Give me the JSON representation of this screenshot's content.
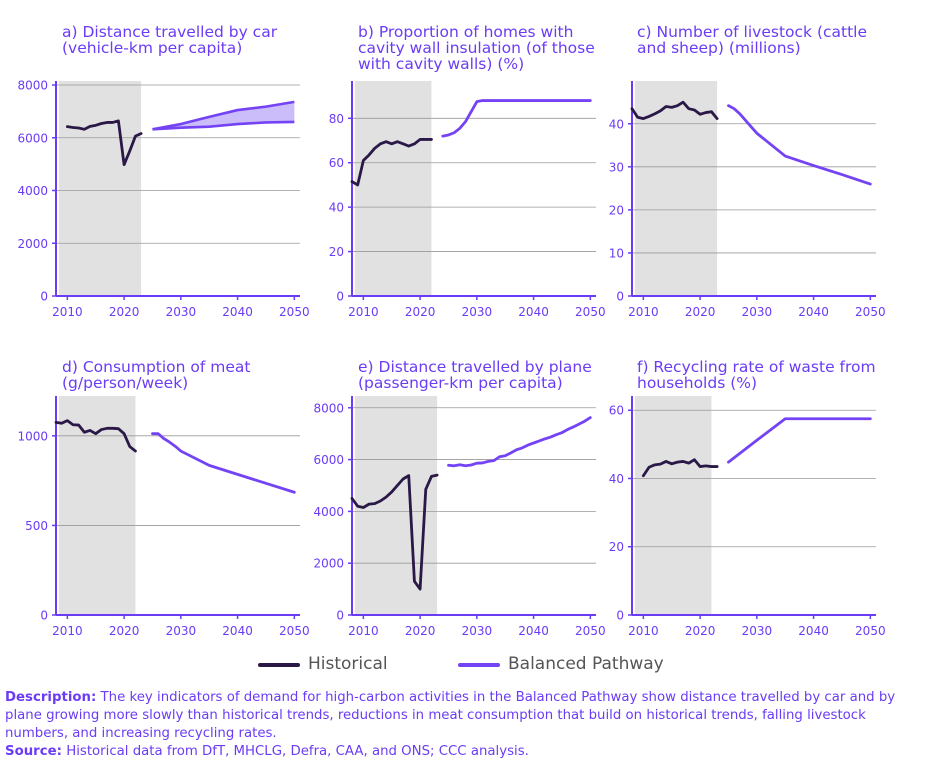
{
  "colors": {
    "historical": "#2a1846",
    "balanced": "#7443f5",
    "accent": "#6b3cf6",
    "shade": "#e1e1e1",
    "grid": "#9a9a9a"
  },
  "legend": {
    "historical": "Historical",
    "balanced": "Balanced Pathway"
  },
  "footer": {
    "description_label": "Description:",
    "description_text": " The key indicators of demand for high-carbon activities in the Balanced Pathway show distance travelled by car and by plane growing more slowly than historical trends, reductions in meat consumption that build on historical trends, falling livestock numbers, and increasing recycling rates.",
    "source_label": "Source:",
    "source_text": " Historical data from DfT, MHCLG, Defra, CAA, and ONS; CCC analysis."
  },
  "chart_data": [
    {
      "type": "line",
      "title": "a) Distance travelled by car (vehicle-km per capita)",
      "xlabel": "",
      "ylabel": "",
      "xlim": [
        2008,
        2051
      ],
      "ylim": [
        0,
        8000
      ],
      "yticks": [
        0,
        2000,
        4000,
        6000,
        8000
      ],
      "yticklabels": [
        "0",
        "2000",
        "4000",
        "6000",
        "8000"
      ],
      "xticks": [
        2010,
        2020,
        2030,
        2040,
        2050
      ],
      "historical_shading": [
        2008,
        2023
      ],
      "grid": true,
      "series": [
        {
          "role": "historical",
          "x": [
            2010,
            2011,
            2012,
            2013,
            2014,
            2015,
            2016,
            2017,
            2018,
            2019,
            2020,
            2021,
            2022,
            2023
          ],
          "y": [
            6420,
            6390,
            6370,
            6320,
            6430,
            6470,
            6540,
            6580,
            6580,
            6640,
            4980,
            5500,
            6060,
            6160
          ]
        },
        {
          "role": "balanced",
          "range": true,
          "x": [
            2025,
            2030,
            2035,
            2040,
            2045,
            2050
          ],
          "y_low": [
            6320,
            6380,
            6420,
            6520,
            6580,
            6600
          ],
          "y_high": [
            6320,
            6520,
            6790,
            7050,
            7180,
            7360
          ]
        }
      ]
    },
    {
      "type": "line",
      "title": "b) Proportion of homes with cavity wall insulation (of those with cavity walls) (%)",
      "xlabel": "",
      "ylabel": "",
      "xlim": [
        2008,
        2051
      ],
      "ylim": [
        0,
        95
      ],
      "yticks": [
        0,
        20,
        40,
        60,
        80
      ],
      "yticklabels": [
        "0",
        "20",
        "40",
        "60",
        "80"
      ],
      "xticks": [
        2010,
        2020,
        2030,
        2040,
        2050
      ],
      "historical_shading": [
        2008,
        2022
      ],
      "grid": true,
      "series": [
        {
          "role": "historical",
          "x": [
            2008,
            2009,
            2010,
            2011,
            2012,
            2013,
            2014,
            2015,
            2016,
            2017,
            2018,
            2019,
            2020,
            2021,
            2022
          ],
          "y": [
            51.5,
            50,
            61,
            63.5,
            66.5,
            68.5,
            69.5,
            68.5,
            69.5,
            68.5,
            67.5,
            68.5,
            70.5,
            70.5,
            70.5
          ]
        },
        {
          "role": "balanced",
          "x": [
            2024,
            2025,
            2026,
            2027,
            2028,
            2029,
            2030,
            2031,
            2035,
            2040,
            2045,
            2050
          ],
          "y": [
            72,
            72.5,
            73.5,
            75.5,
            78.5,
            83,
            87.5,
            88,
            88,
            88,
            88,
            88
          ]
        }
      ]
    },
    {
      "type": "line",
      "title": "c) Number of livestock (cattle and sheep) (millions)",
      "xlabel": "",
      "ylabel": "",
      "xlim": [
        2008,
        2051
      ],
      "ylim": [
        0,
        49
      ],
      "yticks": [
        0,
        10,
        20,
        30,
        40
      ],
      "yticklabels": [
        "0",
        "10",
        "20",
        "30",
        "40"
      ],
      "xticks": [
        2010,
        2020,
        2030,
        2040,
        2050
      ],
      "historical_shading": [
        2008,
        2023
      ],
      "grid": true,
      "series": [
        {
          "role": "historical",
          "x": [
            2008,
            2009,
            2010,
            2011,
            2012,
            2013,
            2014,
            2015,
            2016,
            2017,
            2018,
            2019,
            2020,
            2021,
            2022,
            2023
          ],
          "y": [
            43.5,
            41.5,
            41.2,
            41.7,
            42.3,
            43,
            44,
            43.8,
            44.2,
            45,
            43.5,
            43.2,
            42.2,
            42.6,
            42.8,
            41.2
          ]
        },
        {
          "role": "balanced",
          "x": [
            2025,
            2026,
            2027,
            2028,
            2029,
            2030,
            2035,
            2040,
            2045,
            2050
          ],
          "y": [
            44.2,
            43.5,
            42.3,
            40.8,
            39.3,
            37.8,
            32.5,
            30.3,
            28.2,
            26
          ]
        }
      ]
    },
    {
      "type": "line",
      "title": "d) Consumption of meat (g/person/week)",
      "xlabel": "",
      "ylabel": "",
      "xlim": [
        2008,
        2051
      ],
      "ylim": [
        0,
        1200
      ],
      "yticks": [
        0,
        500,
        1000
      ],
      "yticklabels": [
        "0",
        "500",
        "1000"
      ],
      "xticks": [
        2010,
        2020,
        2030,
        2040,
        2050
      ],
      "historical_shading": [
        2008,
        2022
      ],
      "grid": true,
      "series": [
        {
          "role": "historical",
          "x": [
            2008,
            2009,
            2010,
            2011,
            2012,
            2013,
            2014,
            2015,
            2016,
            2017,
            2018,
            2019,
            2020,
            2021,
            2022
          ],
          "y": [
            1075,
            1070,
            1085,
            1062,
            1060,
            1020,
            1030,
            1012,
            1035,
            1042,
            1042,
            1040,
            1012,
            940,
            915
          ]
        },
        {
          "role": "balanced",
          "x": [
            2025,
            2026,
            2027,
            2028,
            2029,
            2030,
            2035,
            2040,
            2045,
            2050
          ],
          "y": [
            1012,
            1012,
            985,
            965,
            942,
            915,
            835,
            785,
            735,
            685
          ]
        }
      ]
    },
    {
      "type": "line",
      "title": "e) Distance travelled by plane (passenger-km per capita)",
      "xlabel": "",
      "ylabel": "",
      "xlim": [
        2008,
        2051
      ],
      "ylim": [
        0,
        8300
      ],
      "yticks": [
        0,
        2000,
        4000,
        6000,
        8000
      ],
      "yticklabels": [
        "0",
        "2000",
        "4000",
        "6000",
        "8000"
      ],
      "xticks": [
        2010,
        2020,
        2030,
        2040,
        2050
      ],
      "historical_shading": [
        2008,
        2023
      ],
      "grid": true,
      "series": [
        {
          "role": "historical",
          "x": [
            2008,
            2009,
            2010,
            2011,
            2012,
            2013,
            2014,
            2015,
            2016,
            2017,
            2018,
            2019,
            2020,
            2021,
            2022,
            2023
          ],
          "y": [
            4500,
            4200,
            4150,
            4280,
            4300,
            4400,
            4550,
            4750,
            5000,
            5250,
            5380,
            1300,
            1000,
            4850,
            5350,
            5400
          ]
        },
        {
          "role": "balanced",
          "x": [
            2025,
            2026,
            2027,
            2028,
            2029,
            2030,
            2031,
            2032,
            2033,
            2034,
            2035,
            2036,
            2037,
            2038,
            2039,
            2040,
            2041,
            2042,
            2043,
            2044,
            2045,
            2046,
            2047,
            2048,
            2049,
            2050
          ],
          "y": [
            5780,
            5760,
            5800,
            5760,
            5790,
            5860,
            5870,
            5930,
            5960,
            6110,
            6150,
            6260,
            6380,
            6450,
            6560,
            6640,
            6720,
            6800,
            6870,
            6960,
            7040,
            7160,
            7260,
            7370,
            7480,
            7620
          ]
        }
      ]
    },
    {
      "type": "line",
      "title": "f) Recycling rate of waste from households (%)",
      "xlabel": "",
      "ylabel": "",
      "xlim": [
        2008,
        2051
      ],
      "ylim": [
        0,
        63
      ],
      "yticks": [
        0,
        20,
        40,
        60
      ],
      "yticklabels": [
        "0",
        "20",
        "40",
        "60"
      ],
      "xticks": [
        2010,
        2020,
        2030,
        2040,
        2050
      ],
      "historical_shading": [
        2008,
        2022
      ],
      "grid": true,
      "series": [
        {
          "role": "historical",
          "x": [
            2010,
            2011,
            2012,
            2013,
            2014,
            2015,
            2016,
            2017,
            2018,
            2019,
            2020,
            2021,
            2022,
            2023
          ],
          "y": [
            40.8,
            43.3,
            44,
            44.2,
            45,
            44.3,
            44.8,
            45,
            44.5,
            45.5,
            43.5,
            43.7,
            43.5,
            43.5
          ]
        },
        {
          "role": "balanced",
          "x": [
            2025,
            2030,
            2035,
            2040,
            2045,
            2050
          ],
          "y": [
            44.8,
            51.2,
            57.5,
            57.5,
            57.5,
            57.5
          ]
        }
      ]
    }
  ]
}
